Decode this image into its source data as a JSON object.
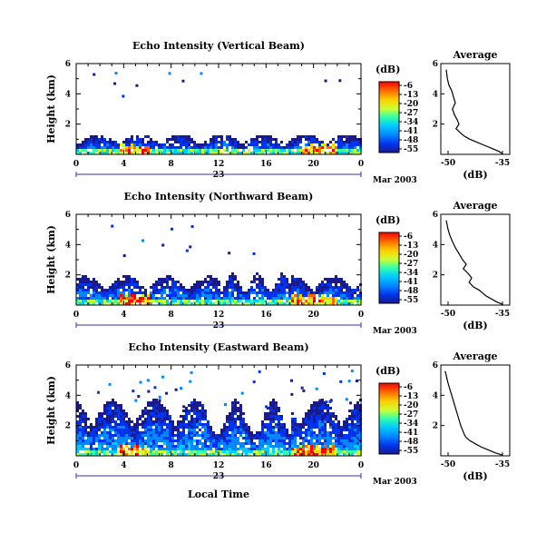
{
  "colorbar": {
    "unit": "(dB)",
    "ticks": [
      "-6",
      "-13",
      "-20",
      "-27",
      "-34",
      "-41",
      "-48",
      "-55"
    ],
    "colors": [
      "#ff0000",
      "#ff6600",
      "#ffcc00",
      "#ccff33",
      "#33ffaa",
      "#00ccff",
      "#0088ff",
      "#0033ee",
      "#1a1a8c"
    ]
  },
  "x_axis": {
    "ticks": [
      "0",
      "4",
      "8",
      "12",
      "16",
      "20",
      "0"
    ],
    "date_label": "23",
    "month_label": "Mar 2003",
    "bottom_label": "Local Time"
  },
  "y_axis": {
    "label": "Height (km)",
    "ticks": [
      "6",
      "4",
      "2"
    ]
  },
  "avg_title": "Average",
  "avg_xlabel": "(dB)",
  "chart_data": [
    {
      "type": "heatmap",
      "title": "Echo Intensity (Vertical Beam)",
      "xlabel": "",
      "ylabel": "Height (km)",
      "xlim": [
        0,
        24
      ],
      "ylim": [
        0,
        6
      ],
      "features": [
        {
          "x0": 0,
          "x1": 24,
          "top": 1.4,
          "level": "-48"
        },
        {
          "x0": 3.5,
          "x1": 6,
          "top": 0.6,
          "level": "-13"
        },
        {
          "x0": 19,
          "x1": 22,
          "top": 0.7,
          "level": "-13"
        }
      ]
    },
    {
      "type": "line",
      "title": "Average",
      "xlabel": "(dB)",
      "xticks": [
        "-50",
        "-35"
      ],
      "yticks": [
        "6",
        "4",
        "2"
      ],
      "xlim": [
        -52,
        -33
      ],
      "ylim": [
        0,
        6
      ],
      "x": [
        -50.5,
        -50.2,
        -49.8,
        -49.0,
        -48.5,
        -48.0,
        -48.8,
        -48.2,
        -47.5,
        -47.0,
        -47.8,
        -46.5,
        -45.5,
        -44.0,
        -42.0,
        -40.0,
        -38.0,
        -36.0,
        -35.0
      ],
      "y": [
        5.6,
        5.0,
        4.6,
        4.2,
        3.8,
        3.4,
        3.0,
        2.6,
        2.3,
        2.0,
        1.7,
        1.4,
        1.2,
        1.0,
        0.8,
        0.6,
        0.4,
        0.2,
        0.05
      ]
    },
    {
      "type": "heatmap",
      "title": "Echo Intensity (Northward Beam)",
      "xlabel": "",
      "ylabel": "Height (km)",
      "xlim": [
        0,
        24
      ],
      "ylim": [
        0,
        6
      ],
      "features": [
        {
          "x0": 0,
          "x1": 24,
          "top": 2.0,
          "level": "-48"
        },
        {
          "x0": 3.5,
          "x1": 6,
          "top": 0.6,
          "level": "-13"
        },
        {
          "x0": 18,
          "x1": 22,
          "top": 0.7,
          "level": "-13"
        }
      ]
    },
    {
      "type": "line",
      "title": "Average",
      "xlabel": "(dB)",
      "xticks": [
        "-50",
        "-35"
      ],
      "yticks": [
        "6",
        "4",
        "2"
      ],
      "xlim": [
        -52,
        -33
      ],
      "ylim": [
        0,
        6
      ],
      "x": [
        -50.5,
        -50.0,
        -49.5,
        -48.8,
        -48.0,
        -47.0,
        -46.0,
        -45.0,
        -45.8,
        -44.5,
        -43.5,
        -44.2,
        -43.0,
        -41.5,
        -40.5,
        -39.5,
        -38.0,
        -36.5,
        -35.0
      ],
      "y": [
        5.6,
        5.0,
        4.6,
        4.2,
        3.8,
        3.4,
        3.0,
        2.7,
        2.4,
        2.1,
        1.8,
        1.5,
        1.2,
        1.0,
        0.8,
        0.6,
        0.4,
        0.2,
        0.05
      ]
    },
    {
      "type": "heatmap",
      "title": "Echo Intensity (Eastward Beam)",
      "xlabel": "Local Time",
      "ylabel": "Height (km)",
      "xlim": [
        0,
        24
      ],
      "ylim": [
        0,
        6
      ],
      "features": [
        {
          "x0": 0,
          "x1": 24,
          "top": 3.8,
          "level": "-48"
        },
        {
          "x0": 3.5,
          "x1": 6,
          "top": 0.6,
          "level": "-13"
        },
        {
          "x0": 18,
          "x1": 22,
          "top": 0.7,
          "level": "-13"
        }
      ]
    },
    {
      "type": "line",
      "title": "Average",
      "xlabel": "(dB)",
      "xticks": [
        "-50",
        "-35"
      ],
      "yticks": [
        "6",
        "4",
        "2"
      ],
      "xlim": [
        -52,
        -33
      ],
      "ylim": [
        0,
        6
      ],
      "x": [
        -50.8,
        -50.4,
        -50.0,
        -49.5,
        -49.0,
        -48.5,
        -48.0,
        -47.5,
        -47.0,
        -46.5,
        -46.0,
        -45.5,
        -45.0,
        -44.0,
        -42.5,
        -41.0,
        -39.0,
        -37.0,
        -35.0
      ],
      "y": [
        5.6,
        5.2,
        4.8,
        4.4,
        4.0,
        3.6,
        3.2,
        2.8,
        2.4,
        2.0,
        1.7,
        1.4,
        1.2,
        1.0,
        0.8,
        0.6,
        0.4,
        0.2,
        0.05
      ]
    }
  ]
}
